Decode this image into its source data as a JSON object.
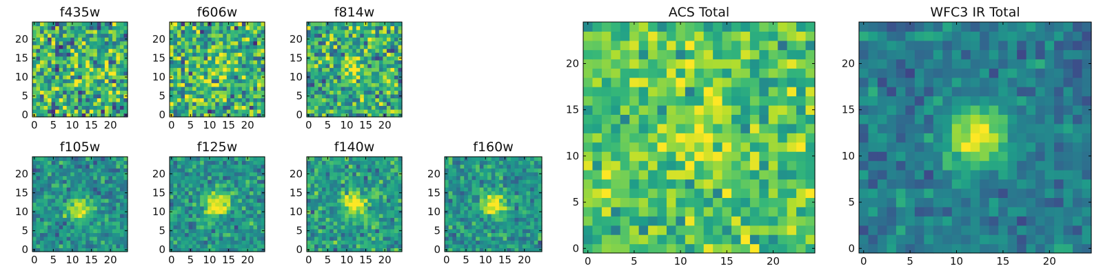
{
  "figure": {
    "colormap": "viridis",
    "colors": {
      "low": "#440154",
      "mid": "#21918c",
      "high": "#fde725"
    }
  },
  "chart_data": [
    {
      "type": "heatmap",
      "title": "f435w",
      "grid": "25x25",
      "peak": [
        12,
        12
      ],
      "amplitude": 0.2,
      "noise": 0.55,
      "background": 0.62,
      "xticks": [
        "0",
        "5",
        "10",
        "15",
        "20"
      ],
      "yticks": [
        "0",
        "5",
        "10",
        "15",
        "20"
      ],
      "xlim": [
        0,
        24
      ],
      "ylim": [
        0,
        24
      ],
      "xlabel": "",
      "ylabel": ""
    },
    {
      "type": "heatmap",
      "title": "f606w",
      "grid": "25x25",
      "peak": [
        12,
        12
      ],
      "amplitude": 0.25,
      "noise": 0.55,
      "background": 0.62,
      "xticks": [
        "0",
        "5",
        "10",
        "15",
        "20"
      ],
      "yticks": [
        "0",
        "5",
        "10",
        "15",
        "20"
      ],
      "xlim": [
        0,
        24
      ],
      "ylim": [
        0,
        24
      ],
      "xlabel": "",
      "ylabel": ""
    },
    {
      "type": "heatmap",
      "title": "f814w",
      "grid": "25x25",
      "peak": [
        12,
        12
      ],
      "amplitude": 0.35,
      "noise": 0.5,
      "background": 0.62,
      "xticks": [
        "0",
        "5",
        "10",
        "15",
        "20"
      ],
      "yticks": [
        "0",
        "5",
        "10",
        "15",
        "20"
      ],
      "xlim": [
        0,
        24
      ],
      "ylim": [
        0,
        24
      ],
      "xlabel": "",
      "ylabel": ""
    },
    {
      "type": "heatmap",
      "title": "f105w",
      "grid": "25x25",
      "peak": [
        12,
        11
      ],
      "amplitude": 0.55,
      "noise": 0.3,
      "background": 0.5,
      "xticks": [
        "0",
        "5",
        "10",
        "15",
        "20"
      ],
      "yticks": [
        "0",
        "5",
        "10",
        "15",
        "20"
      ],
      "xlim": [
        0,
        24
      ],
      "ylim": [
        0,
        24
      ],
      "xlabel": "",
      "ylabel": ""
    },
    {
      "type": "heatmap",
      "title": "f125w",
      "grid": "25x25",
      "peak": [
        12,
        12
      ],
      "amplitude": 0.55,
      "noise": 0.3,
      "background": 0.52,
      "xticks": [
        "0",
        "5",
        "10",
        "15",
        "20"
      ],
      "yticks": [
        "0",
        "5",
        "10",
        "15",
        "20"
      ],
      "xlim": [
        0,
        24
      ],
      "ylim": [
        0,
        24
      ],
      "xlabel": "",
      "ylabel": ""
    },
    {
      "type": "heatmap",
      "title": "f140w",
      "grid": "25x25",
      "peak": [
        12,
        12
      ],
      "amplitude": 0.5,
      "noise": 0.32,
      "background": 0.55,
      "xticks": [
        "0",
        "5",
        "10",
        "15",
        "20"
      ],
      "yticks": [
        "0",
        "5",
        "10",
        "15",
        "20"
      ],
      "xlim": [
        0,
        24
      ],
      "ylim": [
        0,
        24
      ],
      "xlabel": "",
      "ylabel": ""
    },
    {
      "type": "heatmap",
      "title": "f160w",
      "grid": "25x25",
      "peak": [
        12,
        12
      ],
      "amplitude": 0.55,
      "noise": 0.28,
      "background": 0.52,
      "xticks": [
        "0",
        "5",
        "10",
        "15",
        "20"
      ],
      "yticks": [
        "0",
        "5",
        "10",
        "15",
        "20"
      ],
      "xlim": [
        0,
        24
      ],
      "ylim": [
        0,
        24
      ],
      "xlabel": "",
      "ylabel": ""
    },
    {
      "type": "heatmap",
      "title": "ACS Total",
      "grid": "25x25",
      "peak": [
        12,
        12
      ],
      "amplitude": 0.2,
      "noise": 0.35,
      "background": 0.72,
      "xticks": [
        "0",
        "5",
        "10",
        "15",
        "20"
      ],
      "yticks": [
        "0",
        "5",
        "10",
        "15",
        "20"
      ],
      "xlim": [
        0,
        24
      ],
      "ylim": [
        0,
        24
      ],
      "xlabel": "",
      "ylabel": ""
    },
    {
      "type": "heatmap",
      "title": "WFC3 IR Total",
      "grid": "25x25",
      "peak": [
        12,
        12
      ],
      "amplitude": 0.6,
      "noise": 0.22,
      "background": 0.42,
      "xticks": [
        "0",
        "5",
        "10",
        "15",
        "20"
      ],
      "yticks": [
        "0",
        "5",
        "10",
        "15",
        "20"
      ],
      "xlim": [
        0,
        24
      ],
      "ylim": [
        0,
        24
      ],
      "xlabel": "",
      "ylabel": ""
    }
  ]
}
